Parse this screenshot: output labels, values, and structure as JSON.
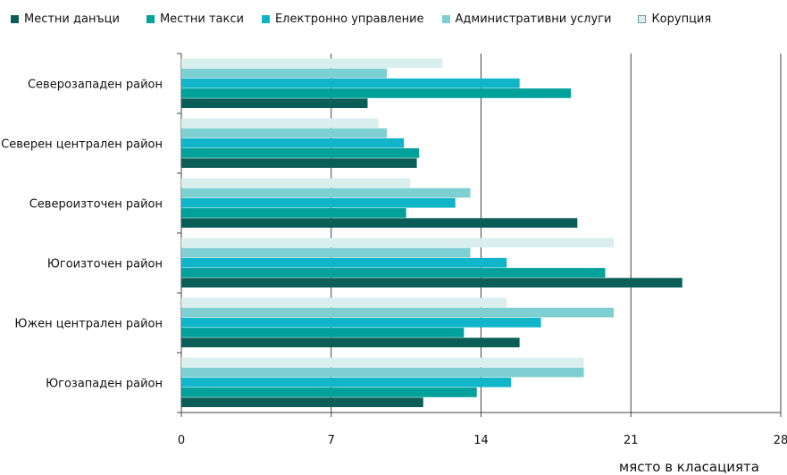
{
  "chart_data": {
    "type": "bar",
    "orientation": "horizontal",
    "categories": [
      "Северозападен район",
      "Северен централен район",
      "Североизточен район",
      "Югоизточен район",
      "Южен централен район",
      "Югозападен район"
    ],
    "series": [
      {
        "name": "Местни данъци",
        "color": "#0b5e58",
        "values": [
          8.7,
          11,
          18.5,
          23.4,
          15.8,
          11.3
        ]
      },
      {
        "name": "Местни такси",
        "color": "#00a19a",
        "values": [
          18.2,
          11.1,
          10.5,
          19.8,
          13.2,
          13.8
        ]
      },
      {
        "name": "Електронно управление",
        "color": "#11b5c9",
        "values": [
          15.8,
          10.4,
          12.8,
          15.2,
          16.8,
          15.4
        ]
      },
      {
        "name": "Административни услуги",
        "color": "#7ecfd1",
        "values": [
          9.6,
          9.6,
          13.5,
          13.5,
          20.2,
          18.8
        ]
      },
      {
        "name": "Корупция",
        "color": "#d9efee",
        "values": [
          12.2,
          9.2,
          10.7,
          20.2,
          15.2,
          18.8
        ]
      }
    ],
    "xlim": [
      0,
      28
    ],
    "xticks": [
      "0",
      "7",
      "14",
      "21",
      "28"
    ],
    "xlabel": "място в класацията",
    "grid": true,
    "legend_position": "top"
  }
}
